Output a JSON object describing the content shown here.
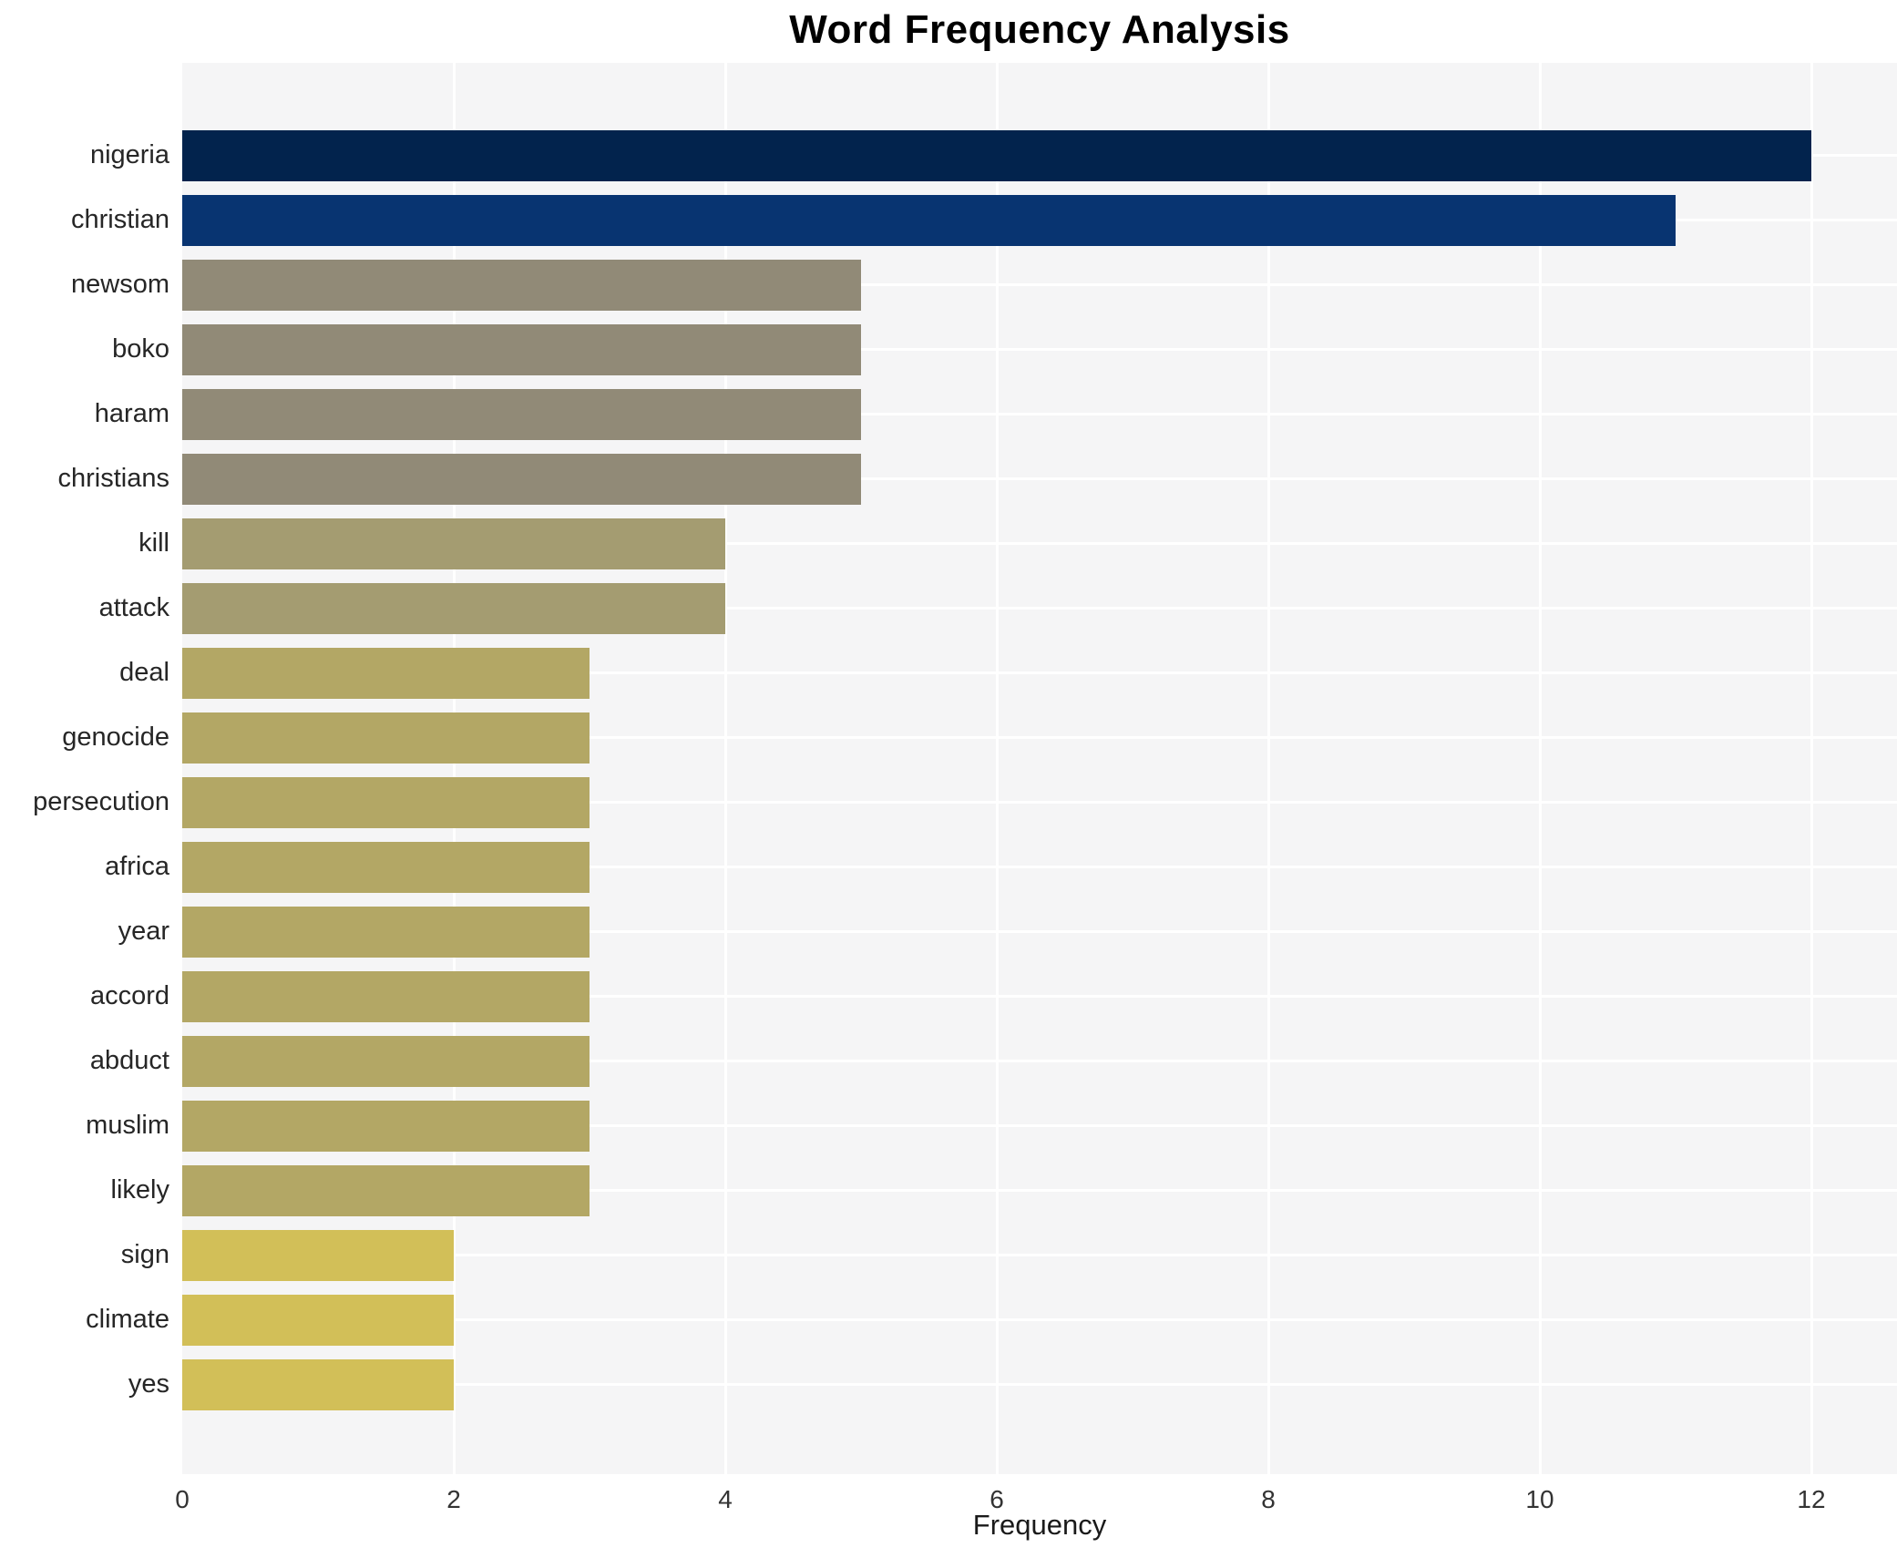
{
  "chart_data": {
    "type": "bar",
    "orientation": "horizontal",
    "title": "Word Frequency Analysis",
    "xlabel": "Frequency",
    "ylabel": "",
    "categories": [
      "nigeria",
      "christian",
      "newsom",
      "boko",
      "haram",
      "christians",
      "kill",
      "attack",
      "deal",
      "genocide",
      "persecution",
      "africa",
      "year",
      "accord",
      "abduct",
      "muslim",
      "likely",
      "sign",
      "climate",
      "yes"
    ],
    "values": [
      12,
      11,
      5,
      5,
      5,
      5,
      4,
      4,
      3,
      3,
      3,
      3,
      3,
      3,
      3,
      3,
      3,
      2,
      2,
      2
    ],
    "xticks": [
      0,
      2,
      4,
      6,
      8,
      10,
      12
    ],
    "xlim": [
      0,
      12.63
    ],
    "grid": true,
    "legend": false,
    "colors": {
      "plot_background": "#f5f5f6",
      "gridline": "#ffffff",
      "title_text": "#000000",
      "label_text": "#262626",
      "tick_text": "#333333",
      "value_12": "#02234d",
      "value_11": "#083471",
      "value_5": "#918a77",
      "value_4": "#a49c71",
      "value_3": "#b3a765",
      "value_2": "#d2bf58"
    }
  }
}
